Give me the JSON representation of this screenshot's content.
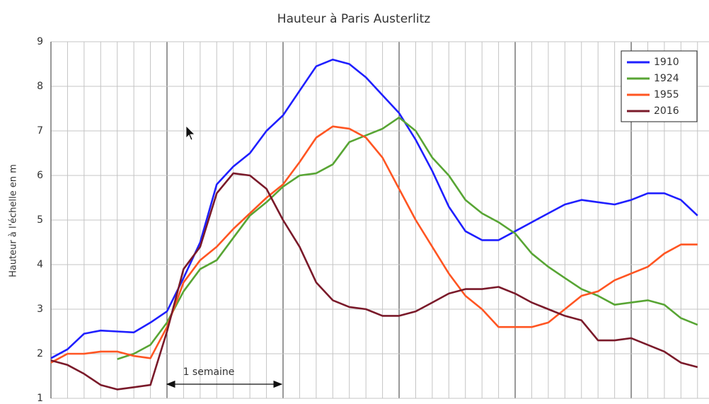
{
  "chart_data": {
    "type": "line",
    "title": "Hauteur à Paris Austerlitz",
    "y_label": "Hauteur à l'échelle en m",
    "annotation": "1 semaine",
    "categories": [
      null,
      null,
      null,
      null,
      null,
      null,
      null,
      null,
      null,
      null,
      null,
      null,
      null,
      null,
      null,
      null,
      null,
      null,
      null,
      null,
      null,
      null,
      null,
      null,
      null,
      null,
      null,
      null,
      null,
      null,
      null,
      null,
      null,
      null,
      null,
      null,
      null,
      null,
      null,
      null
    ],
    "ylim": [
      1,
      9
    ],
    "yticks": [
      1,
      2,
      3,
      4,
      5,
      6,
      7,
      8,
      9
    ],
    "grid": true,
    "legend": "top-right",
    "series": [
      {
        "name": "1910",
        "color": "#1f1fff",
        "values": [
          1.9,
          2.1,
          2.45,
          2.52,
          2.5,
          2.48,
          2.7,
          2.95,
          3.7,
          4.5,
          5.8,
          6.2,
          6.5,
          7.0,
          7.35,
          7.9,
          8.45,
          8.6,
          8.5,
          8.2,
          7.8,
          7.4,
          6.8,
          6.1,
          5.3,
          4.75,
          4.55,
          4.55,
          4.75,
          4.95,
          5.15,
          5.35,
          5.45,
          5.4,
          5.35,
          5.45,
          5.6,
          5.6,
          5.45,
          5.1
        ]
      },
      {
        "name": "1924",
        "color": "#58a534",
        "values": [
          null,
          null,
          null,
          null,
          1.88,
          2.0,
          2.2,
          2.7,
          3.4,
          3.9,
          4.1,
          4.6,
          5.1,
          5.4,
          5.75,
          6.0,
          6.05,
          6.25,
          6.75,
          6.9,
          7.05,
          7.3,
          7.0,
          6.4,
          6.0,
          5.45,
          5.15,
          4.95,
          4.7,
          4.25,
          3.95,
          3.7,
          3.45,
          3.3,
          3.1,
          3.15,
          3.2,
          3.1,
          2.8,
          2.65
        ]
      },
      {
        "name": "1955",
        "color": "#ff5522",
        "values": [
          1.8,
          2.0,
          2.0,
          2.05,
          2.05,
          1.95,
          1.9,
          2.6,
          3.6,
          4.1,
          4.4,
          4.8,
          5.15,
          5.5,
          5.8,
          6.3,
          6.85,
          7.1,
          7.05,
          6.85,
          6.4,
          5.7,
          5.0,
          4.4,
          3.8,
          3.3,
          3.0,
          2.6,
          2.6,
          2.6,
          2.7,
          3.0,
          3.3,
          3.4,
          3.65,
          3.8,
          3.95,
          4.25,
          4.45,
          4.45
        ]
      },
      {
        "name": "2016",
        "color": "#7a1a2a",
        "values": [
          1.85,
          1.75,
          1.55,
          1.3,
          1.2,
          1.25,
          1.3,
          2.5,
          3.9,
          4.4,
          5.6,
          6.05,
          6.0,
          5.7,
          5.0,
          4.4,
          3.6,
          3.2,
          3.05,
          3.0,
          2.85,
          2.85,
          2.95,
          3.15,
          3.35,
          3.45,
          3.45,
          3.5,
          3.35,
          3.15,
          3.0,
          2.85,
          2.75,
          2.3,
          2.3,
          2.35,
          2.2,
          2.05,
          1.8,
          1.7
        ]
      }
    ]
  }
}
